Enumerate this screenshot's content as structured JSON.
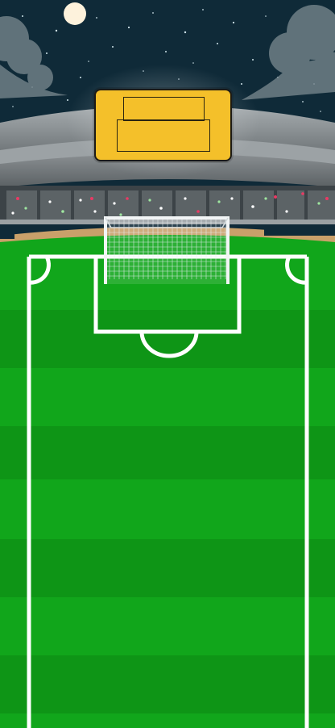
{
  "scene": {
    "type": "football-stadium-night",
    "sky_color": "#0f2a38",
    "moon_color": "#fdf2dc",
    "pitch_color_light": "#11a61b",
    "pitch_color_dark": "#0e9516",
    "line_color": "#ffffff",
    "scoreboard_color": "#f4c02a"
  },
  "scoreboard": {
    "top_text": "",
    "bottom_text": ""
  }
}
